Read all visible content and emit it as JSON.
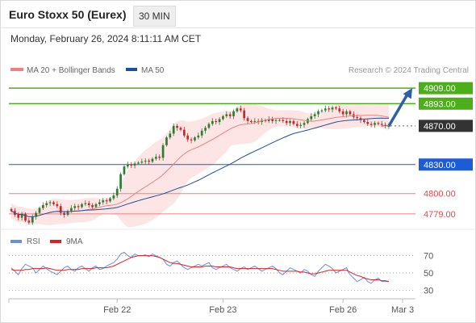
{
  "header": {
    "title": "Euro Stoxx 50 (Eurex)",
    "timeframe": "30 MIN",
    "datetime": "Monday, February 26, 2024 8:11:11 AM CET"
  },
  "legend": {
    "ma20": "MA 20 + Bollinger Bands",
    "ma50": "MA 50",
    "credit": "Research © 2024 Trading Central"
  },
  "rsi_legend": {
    "rsi": "RSI",
    "ma": "9MA"
  },
  "colors": {
    "candle_up": "#2e7d32",
    "candle_down": "#c62828",
    "ma20": "#f08080",
    "bollinger_fill": "#fde0e0",
    "ma50": "#1f4e9e",
    "resistance": "#4caf1a",
    "support_blue": "#1e5bd8",
    "support_red": "#f27f7f",
    "arrow": "#2c5fa8",
    "rsi": "#6b8fe0",
    "rsi_ma": "#e02020"
  },
  "chart_data": [
    {
      "type": "candlestick",
      "title": "Euro Stoxx 50 (Eurex)",
      "timeframe": "30 MIN",
      "ylim": [
        4763,
        4920
      ],
      "x_tick_labels": [
        "Feb 22",
        "Feb 23",
        "Feb 26",
        "Mar 3"
      ],
      "levels": [
        {
          "value": 4909.0,
          "label": "4909.00",
          "kind": "target"
        },
        {
          "value": 4893.0,
          "label": "4893.00",
          "kind": "target"
        },
        {
          "value": 4870.0,
          "label": "4870.00",
          "kind": "current"
        },
        {
          "value": 4830.0,
          "label": "4830.00",
          "kind": "pivot"
        },
        {
          "value": 4800.0,
          "label": "4800.00",
          "kind": "support"
        },
        {
          "value": 4779.0,
          "label": "4779.00",
          "kind": "support"
        }
      ],
      "close": [
        4782,
        4778,
        4775,
        4779,
        4772,
        4770,
        4776,
        4780,
        4785,
        4788,
        4790,
        4791,
        4789,
        4787,
        4780,
        4778,
        4782,
        4785,
        4787,
        4786,
        4789,
        4790,
        4788,
        4786,
        4789,
        4791,
        4793,
        4792,
        4795,
        4798,
        4805,
        4820,
        4828,
        4830,
        4829,
        4831,
        4832,
        4833,
        4834,
        4833,
        4836,
        4838,
        4837,
        4850,
        4858,
        4862,
        4870,
        4868,
        4866,
        4860,
        4856,
        4855,
        4858,
        4860,
        4865,
        4868,
        4872,
        4875,
        4874,
        4877,
        4880,
        4882,
        4880,
        4885,
        4888,
        4886,
        4878,
        4875,
        4874,
        4875,
        4874,
        4876,
        4875,
        4877,
        4875,
        4876,
        4876,
        4875,
        4873,
        4875,
        4872,
        4870,
        4871,
        4873,
        4877,
        4880,
        4882,
        4885,
        4886,
        4888,
        4887,
        4889,
        4888,
        4885,
        4882,
        4885,
        4882,
        4879,
        4878,
        4876,
        4874,
        4872,
        4871,
        4873,
        4872,
        4871,
        4870,
        4870
      ]
    },
    {
      "type": "line",
      "title": "RSI",
      "ylim": [
        20,
        80
      ],
      "y_ticks": [
        70,
        50,
        30
      ],
      "series": [
        {
          "name": "RSI",
          "values": [
            56,
            52,
            48,
            55,
            60,
            58,
            56,
            50,
            54,
            58,
            55,
            52,
            50,
            48,
            52,
            56,
            58,
            54,
            52,
            56,
            58,
            55,
            52,
            56,
            58,
            54,
            55,
            58,
            60,
            62,
            66,
            72,
            74,
            70,
            68,
            72,
            70,
            70,
            71,
            69,
            72,
            70,
            68,
            66,
            60,
            58,
            62,
            64,
            60,
            56,
            54,
            56,
            58,
            60,
            58,
            60,
            62,
            56,
            54,
            56,
            58,
            60,
            56,
            54,
            52,
            55,
            57,
            54,
            56,
            58,
            55,
            52,
            54,
            56,
            58,
            55,
            50,
            48,
            52,
            56,
            54,
            52,
            50,
            54,
            52,
            48,
            46,
            52,
            56,
            60,
            58,
            55,
            50,
            52,
            54,
            56,
            48,
            44,
            40,
            42,
            45,
            40,
            38,
            42,
            44,
            40,
            40,
            40
          ]
        },
        {
          "name": "9MA",
          "values": [
            54,
            53,
            53,
            53,
            54,
            54,
            55,
            55,
            55,
            55,
            56,
            55,
            54,
            53,
            53,
            53,
            54,
            54,
            54,
            54,
            55,
            55,
            55,
            55,
            56,
            56,
            56,
            56,
            57,
            58,
            60,
            62,
            64,
            66,
            68,
            69,
            70,
            70,
            70,
            70,
            70,
            69,
            68,
            66,
            64,
            62,
            61,
            61,
            60,
            59,
            58,
            57,
            57,
            57,
            57,
            58,
            58,
            58,
            57,
            57,
            57,
            57,
            57,
            56,
            55,
            55,
            55,
            55,
            55,
            55,
            55,
            55,
            55,
            55,
            55,
            54,
            53,
            52,
            52,
            52,
            52,
            52,
            51,
            51,
            50,
            49,
            49,
            50,
            51,
            52,
            53,
            53,
            53,
            53,
            53,
            53,
            51,
            49,
            47,
            46,
            44,
            43,
            42,
            42,
            42,
            41,
            41,
            40
          ]
        }
      ]
    }
  ]
}
